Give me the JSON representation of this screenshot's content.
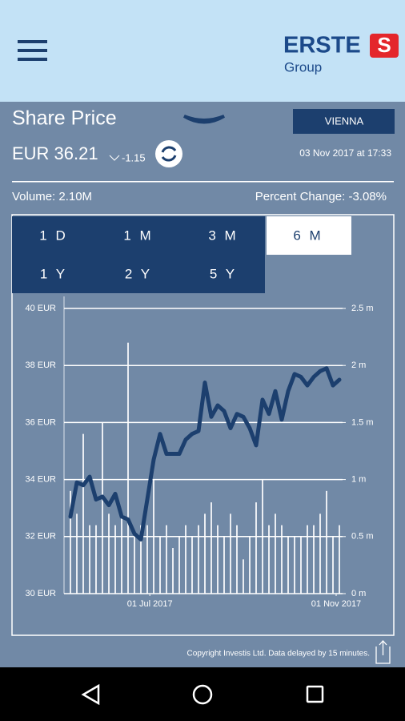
{
  "header": {
    "logo": "ERSTE",
    "logo_sub": "Group"
  },
  "share_price": {
    "title": "Share Price",
    "exchange": "VIENNA",
    "price": "EUR 36.21",
    "change": "-1.15",
    "date": "03 Nov 2017 at 17:33",
    "volume": "Volume:  2.10M",
    "percent_change": "Percent Change:  -3.08%"
  },
  "ranges": [
    "1 D",
    "1 M",
    "3 M",
    "6 M",
    "1 Y",
    "2 Y",
    "5 Y"
  ],
  "selected_range": "6 M",
  "chart_data": {
    "type": "line",
    "xlim": [
      0,
      42
    ],
    "xticks": [
      {
        "value": 12.4,
        "label": "01 Jul 2017"
      },
      {
        "value": 41.5,
        "label": "01 Nov 2017"
      }
    ],
    "ylim": [
      30,
      40
    ],
    "yticks": [
      {
        "value": 30,
        "label": "30 EUR"
      },
      {
        "value": 32,
        "label": "32 EUR"
      },
      {
        "value": 34,
        "label": "34 EUR"
      },
      {
        "value": 36,
        "label": "36 EUR"
      },
      {
        "value": 38,
        "label": "38 EUR"
      },
      {
        "value": 40,
        "label": "40 EUR"
      }
    ],
    "y2lim": [
      0,
      2.5
    ],
    "y2ticks": [
      {
        "value": 0,
        "label": "0 m"
      },
      {
        "value": 0.5,
        "label": "0.5 m"
      },
      {
        "value": 1,
        "label": "1 m"
      },
      {
        "value": 1.5,
        "label": "1.5 m"
      },
      {
        "value": 2,
        "label": "2 m"
      },
      {
        "value": 2.5,
        "label": "2.5 m"
      }
    ],
    "grid": true,
    "series": [
      {
        "type": "line",
        "color": "#1c3f6e",
        "values": [
          32.7,
          33.9,
          33.8,
          34.1,
          33.3,
          33.4,
          33.1,
          33.5,
          32.7,
          32.6,
          32.1,
          31.9,
          33.3,
          34.7,
          35.6,
          34.9,
          34.9,
          34.9,
          35.4,
          35.6,
          35.7,
          37.4,
          36.2,
          36.6,
          36.4,
          35.8,
          36.3,
          36.2,
          35.8,
          35.2,
          36.8,
          36.3,
          37.1,
          36.1,
          37.1,
          37.7,
          37.6,
          37.3,
          37.6,
          37.8,
          37.9,
          37.3,
          37.5
        ]
      },
      {
        "type": "bar",
        "axis": "y2",
        "color": "#ffffff",
        "values": [
          0.9,
          0.7,
          1.4,
          0.6,
          0.6,
          1.5,
          0.7,
          0.6,
          0.7,
          2.2,
          0.5,
          0.6,
          0.6,
          1.0,
          0.5,
          0.6,
          0.4,
          0.5,
          0.6,
          0.5,
          0.6,
          0.7,
          0.8,
          0.6,
          0.5,
          0.7,
          0.6,
          0.3,
          0.5,
          0.8,
          1.0,
          0.6,
          0.7,
          0.6,
          0.5,
          0.5,
          0.5,
          0.6,
          0.6,
          0.7,
          0.9,
          0.5,
          0.6
        ]
      }
    ]
  },
  "footer": {
    "copyright": "Copyright Investis Ltd. Data delayed by 15 minutes."
  }
}
